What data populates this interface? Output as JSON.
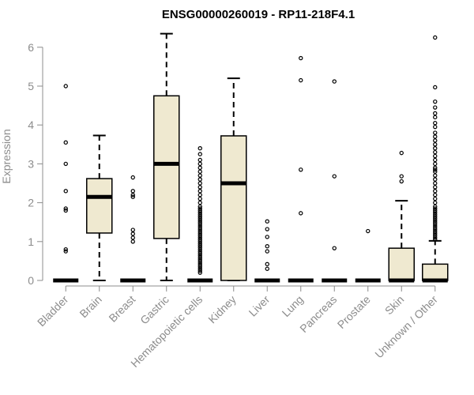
{
  "chart_data": {
    "type": "boxplot",
    "title": "ENSG00000260019 - RP11-218F4.1",
    "xlabel": "",
    "ylabel": "Expression",
    "ylim": [
      0,
      6.3
    ],
    "yticks": [
      0,
      1,
      2,
      3,
      4,
      5,
      6
    ],
    "box_fill": "#efe9d0",
    "categories": [
      "Bladder",
      "Brain",
      "Breast",
      "Gastric",
      "Hematopoietic cells",
      "Kidney",
      "Liver",
      "Lung",
      "Pancreas",
      "Prostate",
      "Skin",
      "Unknown / Other"
    ],
    "boxes": [
      {
        "name": "Bladder",
        "whisker_low": 0,
        "q1": 0,
        "median": 0,
        "q3": 0,
        "whisker_high": 0,
        "outliers": [
          5.0,
          3.55,
          3.0,
          2.3,
          1.85,
          1.8,
          0.8,
          0.75
        ]
      },
      {
        "name": "Brain",
        "whisker_low": 0,
        "q1": 1.22,
        "median": 2.15,
        "q3": 2.62,
        "whisker_high": 3.73,
        "outliers": []
      },
      {
        "name": "Breast",
        "whisker_low": 0,
        "q1": 0,
        "median": 0,
        "q3": 0,
        "whisker_high": 0,
        "outliers": [
          2.65,
          2.3,
          2.2,
          2.15,
          1.3,
          1.2,
          1.1,
          1.0
        ]
      },
      {
        "name": "Gastric",
        "whisker_low": 0,
        "q1": 1.08,
        "median": 3.0,
        "q3": 4.75,
        "whisker_high": 6.35,
        "outliers": []
      },
      {
        "name": "Hematopoietic cells",
        "whisker_low": 0,
        "q1": 0,
        "median": 0,
        "q3": 0,
        "whisker_high": 0,
        "outliers": [
          3.4,
          3.25,
          3.1,
          3.0,
          2.9,
          2.8,
          2.7,
          2.6,
          2.5,
          2.4,
          2.3,
          2.2,
          2.1,
          2.0,
          1.9,
          1.85,
          1.8,
          1.75,
          1.7,
          1.65,
          1.6,
          1.55,
          1.5,
          1.45,
          1.4,
          1.35,
          1.3,
          1.25,
          1.2,
          1.15,
          1.1,
          1.05,
          1.0,
          0.95,
          0.9,
          0.85,
          0.8,
          0.75,
          0.7,
          0.65,
          0.6,
          0.55,
          0.5,
          0.45,
          0.4,
          0.35,
          0.3,
          0.25,
          0.2
        ]
      },
      {
        "name": "Kidney",
        "whisker_low": 0,
        "q1": 0,
        "median": 2.5,
        "q3": 3.72,
        "whisker_high": 5.2,
        "outliers": []
      },
      {
        "name": "Liver",
        "whisker_low": 0,
        "q1": 0,
        "median": 0,
        "q3": 0,
        "whisker_high": 0,
        "outliers": [
          1.52,
          1.32,
          1.12,
          0.88,
          0.75,
          0.42,
          0.3
        ]
      },
      {
        "name": "Lung",
        "whisker_low": 0,
        "q1": 0,
        "median": 0,
        "q3": 0,
        "whisker_high": 0,
        "outliers": [
          5.72,
          5.15,
          2.85,
          1.73
        ]
      },
      {
        "name": "Pancreas",
        "whisker_low": 0,
        "q1": 0,
        "median": 0,
        "q3": 0,
        "whisker_high": 0,
        "outliers": [
          5.12,
          2.68,
          0.83
        ]
      },
      {
        "name": "Prostate",
        "whisker_low": 0,
        "q1": 0,
        "median": 0,
        "q3": 0,
        "whisker_high": 0,
        "outliers": [
          1.27
        ]
      },
      {
        "name": "Skin",
        "whisker_low": 0,
        "q1": 0,
        "median": 0,
        "q3": 0.83,
        "whisker_high": 2.05,
        "outliers": [
          3.28,
          2.68,
          2.55
        ]
      },
      {
        "name": "Unknown / Other",
        "whisker_low": 0,
        "q1": 0,
        "median": 0,
        "q3": 0.42,
        "whisker_high": 1.02,
        "outliers": [
          6.25,
          4.97,
          4.6,
          4.45,
          4.3,
          4.2,
          4.05,
          3.95,
          3.8,
          3.7,
          3.6,
          3.5,
          3.4,
          3.3,
          3.2,
          3.1,
          3.0,
          2.9,
          2.85,
          2.8,
          2.7,
          2.6,
          2.5,
          2.4,
          2.3,
          2.2,
          2.1,
          2.0,
          1.9,
          1.85,
          1.8,
          1.75,
          1.7,
          1.65,
          1.6,
          1.55,
          1.5,
          1.45,
          1.4,
          1.35,
          1.3,
          1.25,
          1.2,
          1.15,
          1.1,
          1.05
        ]
      }
    ]
  }
}
